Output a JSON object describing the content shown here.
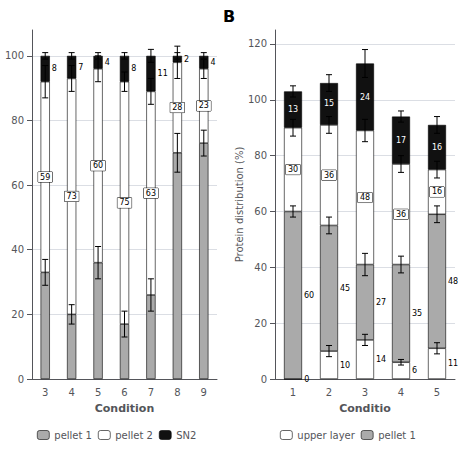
{
  "chart_data": [
    {
      "type": "bar",
      "stacked": true,
      "grid": true,
      "legend": "bottom",
      "xlabel": "Condition",
      "categories": [
        3,
        4,
        5,
        6,
        7,
        8,
        9
      ],
      "ylim": [
        0,
        108
      ],
      "yticks": [
        0,
        20,
        40,
        60,
        80,
        100
      ],
      "series": [
        {
          "name": "pellet 1",
          "color": "#aaaaaa",
          "values": [
            33,
            20,
            36,
            17,
            26,
            70,
            73
          ],
          "errors": [
            4,
            3,
            5,
            4,
            5,
            6,
            4
          ]
        },
        {
          "name": "pellet 2",
          "color": "#ffffff",
          "values": [
            59,
            73,
            60,
            75,
            63,
            28,
            23
          ],
          "errors": [
            5,
            4,
            4,
            3,
            4,
            5,
            3
          ],
          "data_labels": true
        },
        {
          "name": "SN2",
          "color": "#111111",
          "values": [
            8,
            7,
            4,
            8,
            11,
            2,
            4
          ],
          "errors": [
            1,
            1,
            1,
            1,
            2,
            1,
            1
          ],
          "data_labels": true
        }
      ]
    },
    {
      "type": "bar",
      "stacked": true,
      "grid": true,
      "legend": "bottom",
      "xlabel": "Conditio",
      "ylabel": "Protein distribution (%)",
      "annotation": "B",
      "categories": [
        1,
        2,
        3,
        4,
        5
      ],
      "ylim": [
        0,
        125
      ],
      "yticks": [
        0,
        20,
        40,
        60,
        80,
        100,
        120
      ],
      "series": [
        {
          "name": "upper layer",
          "color": "#ffffff",
          "values": [
            0,
            10,
            14,
            6,
            11
          ],
          "errors": [
            0,
            2,
            2,
            1,
            2
          ],
          "data_labels": true
        },
        {
          "name": "pellet 1",
          "color": "#aaaaaa",
          "values": [
            60,
            45,
            27,
            35,
            48
          ],
          "errors": [
            2,
            3,
            4,
            3,
            3
          ],
          "data_labels": true
        },
        {
          "color": "#ffffff",
          "values": [
            30,
            36,
            48,
            36,
            16
          ],
          "errors": [
            3,
            3,
            4,
            3,
            3
          ],
          "data_labels": true
        },
        {
          "color": "#111111",
          "values": [
            13,
            15,
            24,
            17,
            16
          ],
          "errors": [
            2,
            3,
            5,
            2,
            3
          ],
          "data_labels": true
        }
      ]
    }
  ]
}
